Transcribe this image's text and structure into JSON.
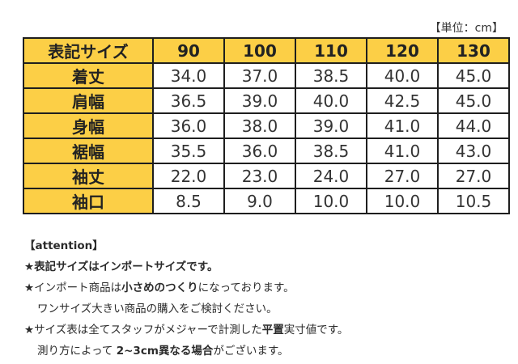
{
  "unit_note": "【単位：cm】",
  "table": {
    "header_label": "表記サイズ",
    "sizes": [
      "90",
      "100",
      "110",
      "120",
      "130"
    ],
    "rows": [
      {
        "label": "着丈",
        "values": [
          "34.0",
          "37.0",
          "38.5",
          "40.0",
          "45.0"
        ]
      },
      {
        "label": "肩幅",
        "values": [
          "36.5",
          "39.0",
          "40.0",
          "42.5",
          "45.0"
        ]
      },
      {
        "label": "身幅",
        "values": [
          "36.0",
          "38.0",
          "39.0",
          "41.0",
          "44.0"
        ]
      },
      {
        "label": "裾幅",
        "values": [
          "35.5",
          "36.0",
          "38.5",
          "41.0",
          "43.0"
        ]
      },
      {
        "label": "袖丈",
        "values": [
          "22.0",
          "23.0",
          "24.0",
          "27.0",
          "27.0"
        ]
      },
      {
        "label": "袖口",
        "values": [
          "8.5",
          "9.0",
          "10.0",
          "10.0",
          "10.5"
        ]
      }
    ]
  },
  "notes": {
    "heading": "【attention】",
    "note1": "★表記サイズはインポートサイズです。",
    "note2_a": "★インポート商品は",
    "note2_b": "小さめのつくり",
    "note2_c": "になっております。",
    "note2_line2": "ワンサイズ大きい商品の購入をご検討ください。",
    "note3_a": "★サイズ表は全てスタッフがメジャーで計測した",
    "note3_b": "平置",
    "note3_c": "実寸値です。",
    "note3_line2_a": "測り方によって ",
    "note3_line2_b": "2~3cm異なる場合",
    "note3_line2_c": "がございます。"
  }
}
